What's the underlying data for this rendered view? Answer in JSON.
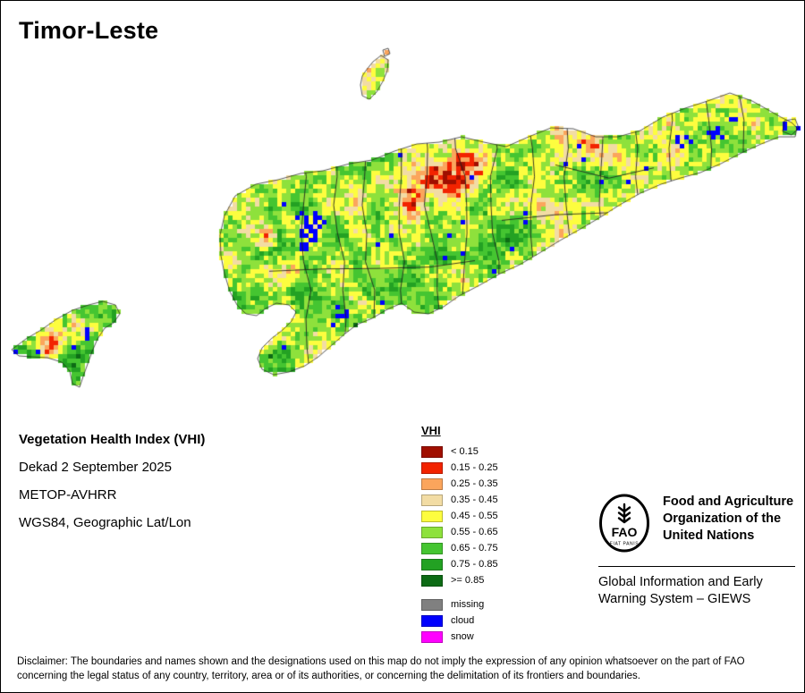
{
  "page": {
    "title": "Timor-Leste"
  },
  "map_info": {
    "product": "Vegetation Health Index (VHI)",
    "dekad": "Dekad 2 September 2025",
    "sensor": "METOP-AVHRR",
    "projection": "WGS84, Geographic Lat/Lon"
  },
  "legend": {
    "title": "VHI",
    "classes": [
      {
        "label": "< 0.15",
        "color": "#a00f00"
      },
      {
        "label": "0.15 - 0.25",
        "color": "#f22300"
      },
      {
        "label": "0.25 - 0.35",
        "color": "#fba55c"
      },
      {
        "label": "0.35 - 0.45",
        "color": "#f2dca4"
      },
      {
        "label": "0.45 - 0.55",
        "color": "#fdfd3f"
      },
      {
        "label": "0.55 - 0.65",
        "color": "#8ee13c"
      },
      {
        "label": "0.65 - 0.75",
        "color": "#45c531"
      },
      {
        "label": "0.75 - 0.85",
        "color": "#23a123"
      },
      {
        "label": ">= 0.85",
        "color": "#0d6b15"
      }
    ],
    "extra_classes": [
      {
        "label": "missing",
        "color": "#808080"
      },
      {
        "label": "cloud",
        "color": "#0000fe"
      },
      {
        "label": "snow",
        "color": "#ff00ff"
      }
    ]
  },
  "footer": {
    "fao_logo_text": "FAO",
    "fao_logo_motto": "FIAT PANIS",
    "fao_name": "Food and Agriculture Organization of the United Nations",
    "giews": "Global Information and Early Warning System – GIEWS",
    "disclaimer": "Disclaimer: The boundaries and names shown and the designations used on this map do not imply the expression of any opinion whatsoever on the part of FAO concerning the legal status of any country, territory, area or of its authorities, or concerning the delimitation of its frontiers and boundaries."
  }
}
